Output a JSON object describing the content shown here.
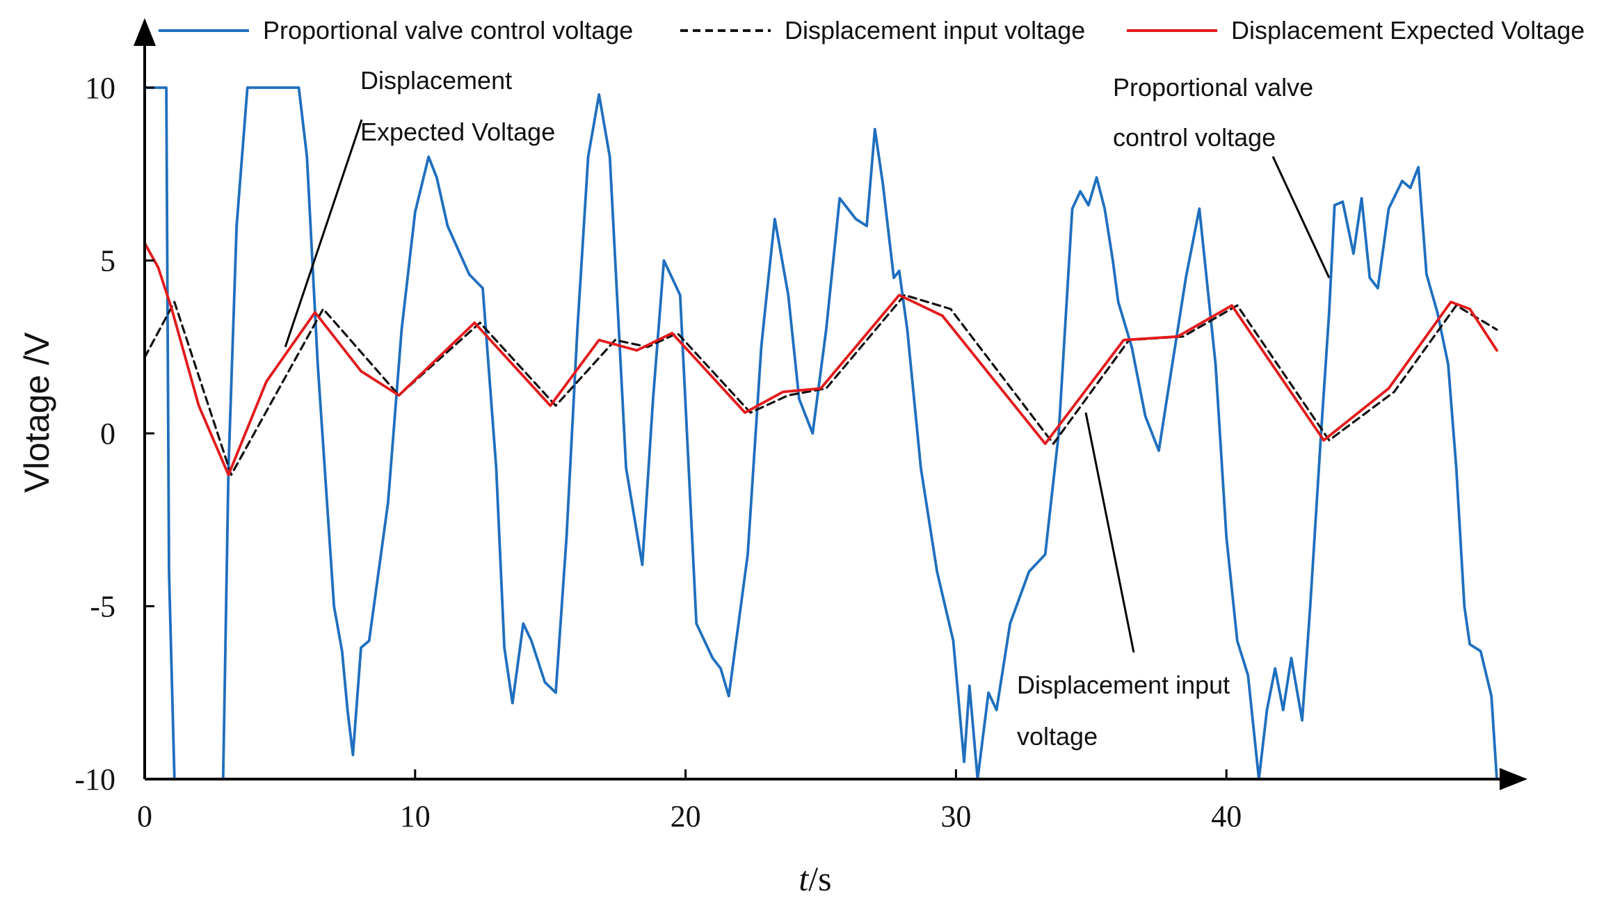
{
  "chart_data": {
    "type": "line",
    "title": "",
    "xlabel_italic": "t",
    "xlabel_unit": "/s",
    "ylabel": "Vlotage /V",
    "xlim": [
      0,
      50
    ],
    "ylim": [
      -10,
      11
    ],
    "x_ticks": [
      0,
      10,
      20,
      30,
      40
    ],
    "y_ticks": [
      10,
      5,
      0,
      -5,
      -10
    ],
    "colors": {
      "valve": "#1f6fbf",
      "input": "#111111",
      "expected": "#e31a1c"
    },
    "series": [
      {
        "name": "Proportional valve control voltage",
        "style": "solid",
        "color": "#1f6fbf",
        "x": [
          0,
          0.8,
          0.9,
          1.1,
          2.9,
          3.1,
          3.4,
          3.8,
          4.0,
          5.7,
          6.0,
          6.4,
          7.0,
          7.3,
          7.5,
          7.7,
          8.0,
          8.3,
          9.0,
          9.5,
          10.0,
          10.5,
          10.8,
          11.2,
          12.0,
          12.5,
          13.0,
          13.3,
          13.6,
          14.0,
          14.3,
          14.8,
          15.2,
          15.6,
          16.0,
          16.4,
          16.8,
          17.2,
          17.8,
          18.4,
          18.8,
          19.2,
          19.8,
          20.4,
          21.0,
          21.3,
          21.6,
          22.3,
          22.8,
          23.0,
          23.3,
          23.8,
          24.2,
          24.7,
          25.2,
          25.7,
          26.3,
          26.7,
          27.0,
          27.3,
          27.7,
          27.9,
          28.2,
          28.7,
          29.3,
          29.9,
          30.3,
          30.5,
          30.8,
          31.2,
          31.5,
          32.0,
          32.7,
          33.3,
          33.8,
          34.3,
          34.6,
          34.9,
          35.2,
          35.5,
          35.8,
          36.0,
          36.5,
          37.0,
          37.5,
          38.0,
          38.5,
          39.0,
          39.6,
          40.0,
          40.4,
          40.8,
          41.2,
          41.5,
          41.8,
          42.1,
          42.4,
          42.8,
          43.1,
          43.5,
          43.8,
          44.0,
          44.3,
          44.7,
          45.0,
          45.3,
          45.6,
          46.0,
          46.5,
          46.8,
          47.1,
          47.4,
          47.8,
          48.2,
          48.5,
          48.8,
          49.0,
          49.4,
          49.8,
          50.0
        ],
        "y": [
          10,
          10,
          -4,
          -10,
          -10,
          -1,
          6,
          10,
          10,
          10,
          8,
          2,
          -5,
          -6.3,
          -8,
          -9.3,
          -6.2,
          -6,
          -2,
          3,
          6.4,
          8,
          7.4,
          6,
          4.6,
          4.2,
          -1,
          -6.2,
          -7.8,
          -5.5,
          -6,
          -7.2,
          -7.5,
          -3,
          3,
          8,
          9.8,
          8,
          -1,
          -3.8,
          1,
          5,
          4,
          -5.5,
          -6.5,
          -6.8,
          -7.6,
          -3.5,
          2.5,
          4,
          6.2,
          4,
          1,
          0,
          3,
          6.8,
          6.2,
          6,
          8.8,
          7.2,
          4.5,
          4.7,
          3,
          -1,
          -4,
          -6,
          -9.5,
          -7.3,
          -10,
          -7.5,
          -8,
          -5.5,
          -4,
          -3.5,
          0,
          6.5,
          7,
          6.6,
          7.4,
          6.5,
          5,
          3.8,
          2.5,
          0.5,
          -0.5,
          2,
          4.5,
          6.5,
          2,
          -3,
          -6,
          -7,
          -10,
          -8,
          -6.8,
          -8,
          -6.5,
          -8.3,
          -5,
          0,
          3.5,
          6.6,
          6.7,
          5.2,
          6.8,
          4.5,
          4.2,
          6.5,
          7.3,
          7.1,
          7.7,
          4.6,
          3.5,
          2,
          -1,
          -5,
          -6.1,
          -6.3,
          -7.6,
          -10
        ]
      },
      {
        "name": "Displacement input voltage",
        "style": "dashed",
        "color": "#111111",
        "x": [
          0,
          1.1,
          3.2,
          6.6,
          9.4,
          12.4,
          15.2,
          17.4,
          18.6,
          19.7,
          22.4,
          23.8,
          25.2,
          28.1,
          29.8,
          33.6,
          36.4,
          38.4,
          40.4,
          43.8,
          46.2,
          48.5,
          50.0
        ],
        "y": [
          2.2,
          3.8,
          -1.2,
          3.6,
          1.1,
          3.2,
          0.8,
          2.7,
          2.5,
          2.9,
          0.6,
          1.1,
          1.3,
          4.0,
          3.6,
          -0.3,
          2.7,
          2.8,
          3.7,
          -0.2,
          1.2,
          3.7,
          3.0
        ]
      },
      {
        "name": "Displacement Expected Voltage",
        "style": "solid",
        "color": "#e31a1c",
        "x": [
          0,
          0.5,
          1.0,
          2.0,
          3.1,
          4.5,
          6.3,
          8.0,
          9.4,
          12.2,
          15.0,
          16.8,
          18.2,
          19.5,
          22.2,
          23.6,
          25.0,
          27.9,
          29.5,
          33.3,
          36.2,
          38.2,
          40.2,
          43.6,
          46.0,
          48.3,
          49.0,
          50.0
        ],
        "y": [
          5.5,
          4.8,
          3.6,
          0.8,
          -1.2,
          1.5,
          3.5,
          1.8,
          1.1,
          3.2,
          0.8,
          2.7,
          2.4,
          2.9,
          0.6,
          1.2,
          1.3,
          4.0,
          3.4,
          -0.3,
          2.7,
          2.8,
          3.7,
          -0.2,
          1.3,
          3.8,
          3.6,
          2.4
        ]
      }
    ],
    "legend": {
      "position": "top",
      "items": [
        {
          "label": "Proportional valve control voltage",
          "style": "solid",
          "color": "#1f6fbf"
        },
        {
          "label": "Displacement input voltage",
          "style": "dashed",
          "color": "#111111"
        },
        {
          "label": "Displacement Expected Voltage",
          "style": "solid",
          "color": "#e31a1c"
        }
      ]
    },
    "annotations": [
      {
        "name": "annot-expected",
        "lines": [
          "Displacement",
          "Expected Voltage"
        ],
        "target": [
          5.2,
          2.5
        ]
      },
      {
        "name": "annot-valve",
        "lines": [
          "Proportional valve",
          "control voltage"
        ],
        "target": [
          43.8,
          4.5
        ]
      },
      {
        "name": "annot-input",
        "lines": [
          "Displacement input",
          "voltage"
        ],
        "target": [
          34.8,
          0.6
        ]
      }
    ]
  }
}
